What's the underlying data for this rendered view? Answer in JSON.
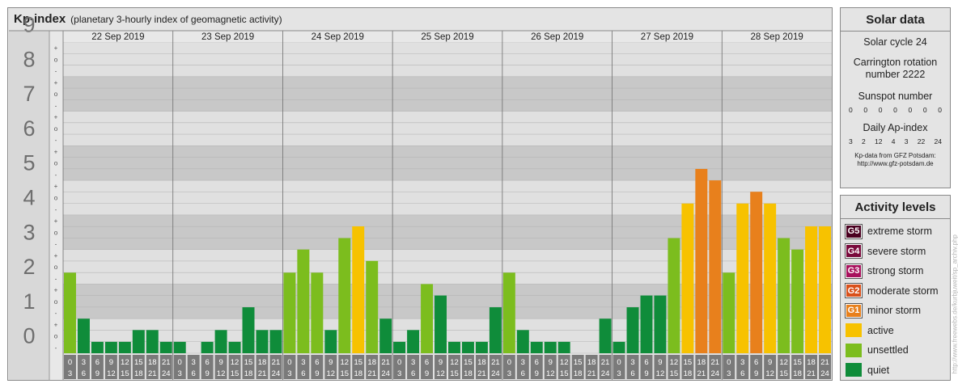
{
  "header": {
    "title": "Kp-index",
    "subtitle": "(planetary 3-hourly index of geomagnetic activity)"
  },
  "solar": {
    "title": "Solar data",
    "cycle_label": "Solar cycle 24",
    "carrington_label": "Carrington rotation number 2222",
    "sunspot_label": "Sunspot number",
    "sunspot_values": [
      "0",
      "0",
      "0",
      "0",
      "0",
      "0",
      "0"
    ],
    "ap_label": "Daily Ap-index",
    "ap_values": [
      "3",
      "2",
      "12",
      "4",
      "3",
      "22",
      "24"
    ],
    "source_line1": "Kp-data from GFZ Potsdam:",
    "source_line2": "http://www.gfz-potsdam.de"
  },
  "levels": {
    "title": "Activity levels",
    "items": [
      {
        "code": "G5",
        "label": "extreme storm",
        "color": "#4a0020"
      },
      {
        "code": "G4",
        "label": "severe storm",
        "color": "#7a0a3c"
      },
      {
        "code": "G3",
        "label": "strong storm",
        "color": "#a8115d"
      },
      {
        "code": "G2",
        "label": "moderate storm",
        "color": "#d9501a"
      },
      {
        "code": "G1",
        "label": "minor storm",
        "color": "#e8801c"
      },
      {
        "code": "",
        "label": "active",
        "color": "#f7c200"
      },
      {
        "code": "",
        "label": "unsettled",
        "color": "#7cbd1e"
      },
      {
        "code": "",
        "label": "quiet",
        "color": "#0f8c3a"
      }
    ]
  },
  "credit": "http://www.freewebs.de/kurbjuweit/sp_archiv.php",
  "chart_data": {
    "type": "bar",
    "days": [
      "22 Sep 2019",
      "23 Sep 2019",
      "24 Sep 2019",
      "25 Sep 2019",
      "26 Sep 2019",
      "27 Sep 2019",
      "28 Sep 2019"
    ],
    "hour_starts": [
      "0",
      "3",
      "6",
      "9",
      "12",
      "15",
      "18",
      "21"
    ],
    "hour_ends": [
      "3",
      "6",
      "9",
      "12",
      "15",
      "18",
      "21",
      "24"
    ],
    "y_ticks": [
      "0",
      "1",
      "2",
      "3",
      "4",
      "5",
      "6",
      "7",
      "8",
      "9"
    ],
    "sub_ticks": [
      "-",
      "o",
      "+"
    ],
    "ylim": [
      0,
      9
    ],
    "values": [
      2.33,
      1.0,
      0.33,
      0.33,
      0.33,
      0.67,
      0.67,
      0.33,
      0.33,
      0.0,
      0.33,
      0.67,
      0.33,
      1.33,
      0.67,
      0.67,
      2.33,
      3.0,
      2.33,
      0.67,
      3.33,
      3.67,
      2.67,
      1.0,
      0.33,
      0.67,
      2.0,
      1.67,
      0.33,
      0.33,
      0.33,
      1.33,
      2.33,
      0.67,
      0.33,
      0.33,
      0.33,
      0.0,
      0.0,
      1.0,
      0.33,
      1.33,
      1.67,
      1.67,
      3.33,
      4.33,
      5.33,
      5.0,
      2.33,
      4.33,
      4.67,
      4.33,
      3.33,
      3.0,
      3.67,
      3.67
    ],
    "colors": {
      "quiet": "#0f8c3a",
      "unsettled": "#7cbd1e",
      "active": "#f7c200",
      "minor": "#e8801c",
      "moderate": "#d9501a"
    }
  }
}
